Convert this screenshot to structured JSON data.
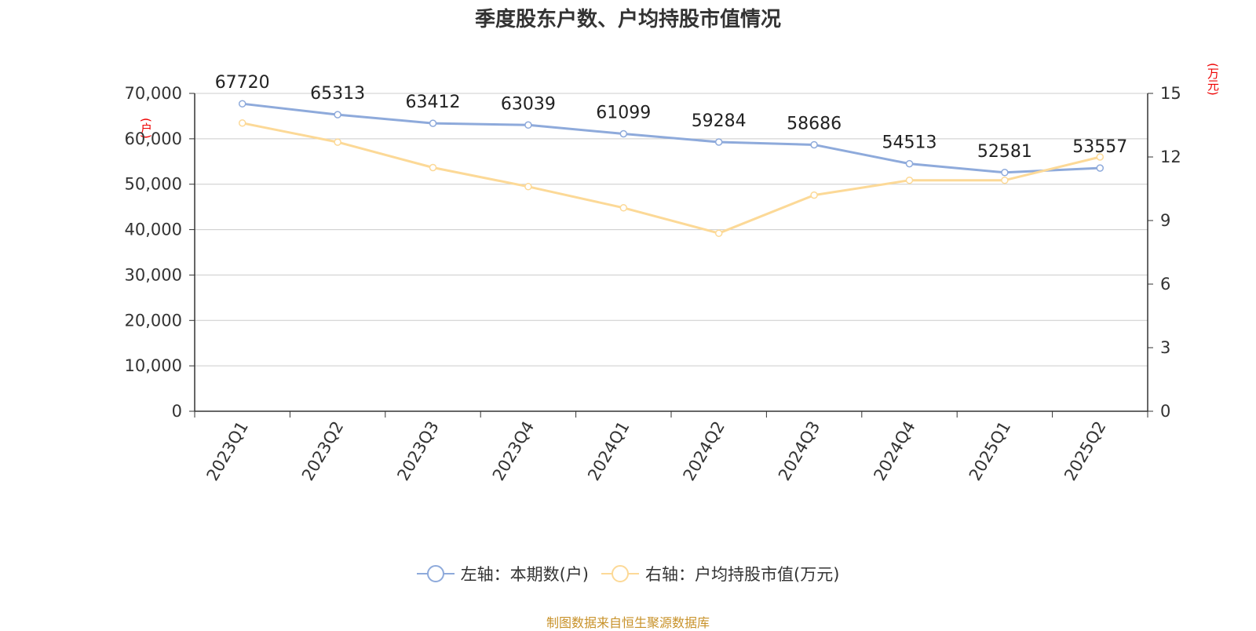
{
  "chart_data": {
    "type": "line",
    "title": "季度股东户数、户均持股市值情况",
    "categories": [
      "2023Q1",
      "2023Q2",
      "2023Q3",
      "2023Q4",
      "2024Q1",
      "2024Q2",
      "2024Q3",
      "2024Q4",
      "2025Q1",
      "2025Q2"
    ],
    "left_axis": {
      "unit": "(户)",
      "ylim": [
        0,
        70000
      ],
      "ticks": [
        "0",
        "10,000",
        "20,000",
        "30,000",
        "40,000",
        "50,000",
        "60,000",
        "70,000"
      ]
    },
    "right_axis": {
      "unit": "(万元)",
      "ylim": [
        0,
        15
      ],
      "ticks": [
        "0",
        "3",
        "6",
        "9",
        "12",
        "15"
      ]
    },
    "series": [
      {
        "name": "左轴：本期数(户)",
        "axis": "left",
        "color": "#8eaadb",
        "values": [
          67720,
          65313,
          63412,
          63039,
          61099,
          59284,
          58686,
          54513,
          52581,
          53557
        ],
        "labels": [
          "67720",
          "65313",
          "63412",
          "63039",
          "61099",
          "59284",
          "58686",
          "54513",
          "52581",
          "53557"
        ]
      },
      {
        "name": "右轴：户均持股市值(万元)",
        "axis": "right",
        "color": "#fcd997",
        "values": [
          13.6,
          12.7,
          11.5,
          10.6,
          9.6,
          8.4,
          10.2,
          10.9,
          10.9,
          12.0
        ]
      }
    ],
    "grid": true,
    "legend_position": "bottom"
  },
  "source": "制图数据来自恒生聚源数据库"
}
